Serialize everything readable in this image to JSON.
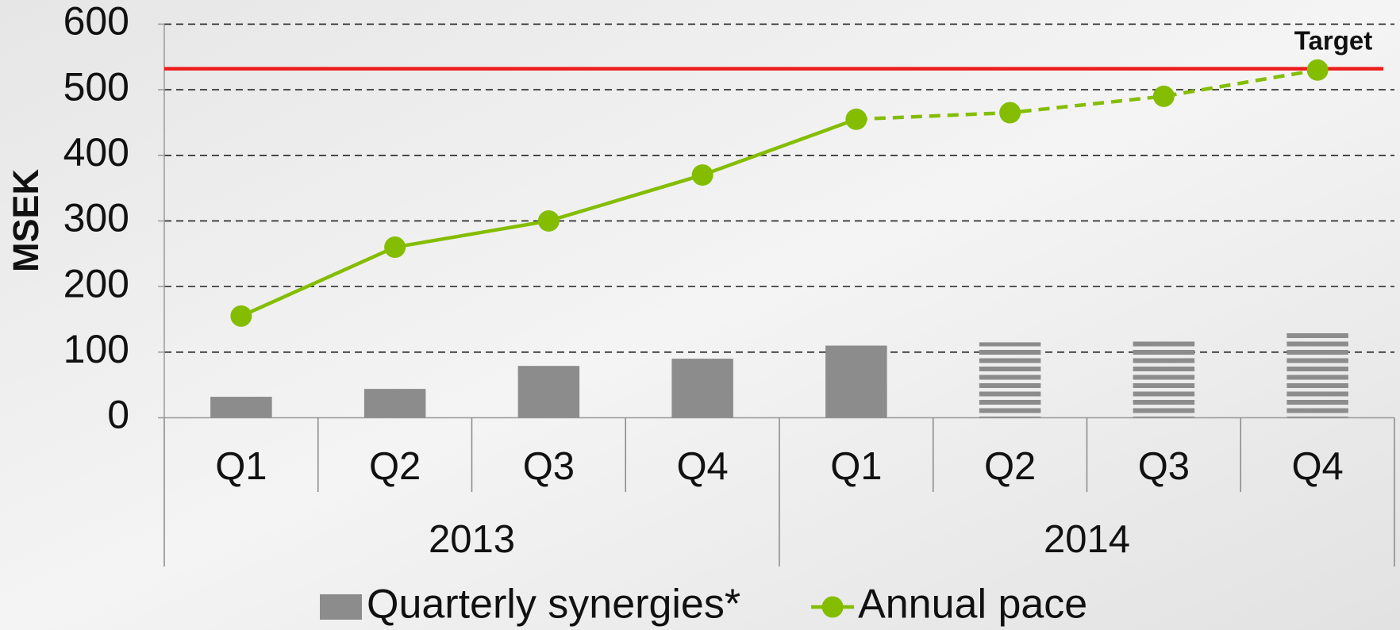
{
  "chart_data": {
    "type": "bar_line",
    "y_label": "MSEK",
    "groups": [
      {
        "label": "2013",
        "categories": [
          "Q1",
          "Q2",
          "Q3",
          "Q4"
        ]
      },
      {
        "label": "2014",
        "categories": [
          "Q1",
          "Q2",
          "Q3",
          "Q4"
        ]
      }
    ],
    "series": [
      {
        "name": "Quarterly synergies*",
        "type": "bar",
        "color": "#8c8c8c",
        "values": [
          32,
          44,
          79,
          90,
          110,
          115,
          121,
          130
        ]
      },
      {
        "name": "Annual pace",
        "type": "line",
        "color": "#84bd00",
        "values": [
          155,
          260,
          300,
          370,
          455,
          465,
          490,
          530
        ]
      }
    ],
    "projected": [
      false,
      false,
      false,
      false,
      false,
      true,
      true,
      true
    ],
    "line_projected": [
      false,
      false,
      false,
      false,
      false,
      true,
      true,
      true
    ],
    "target": {
      "label": "Target",
      "value": 532,
      "color": "#ee1c1c"
    },
    "ylim": [
      0,
      600
    ],
    "yticks": [
      0,
      100,
      200,
      300,
      400,
      500,
      600
    ],
    "grid": true,
    "legend": "bottom"
  }
}
